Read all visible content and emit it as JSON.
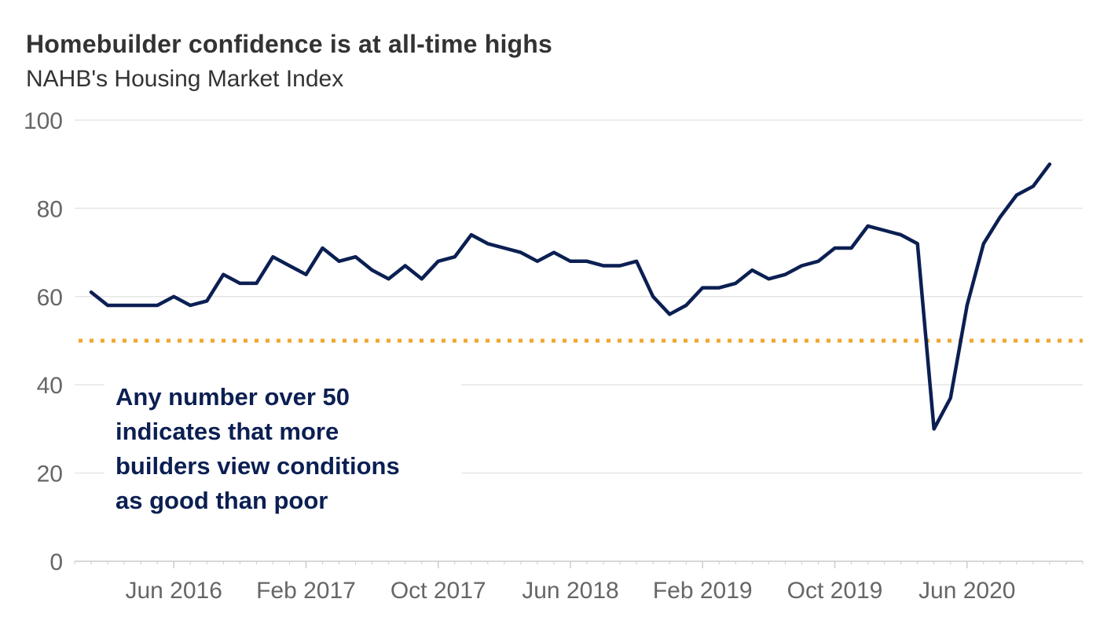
{
  "title": "Homebuilder confidence is at all-time highs",
  "subtitle": "NAHB's Housing Market Index",
  "annotation": {
    "lines": [
      "Any number over 50",
      "indicates that more",
      "builders view conditions",
      "as good than poor"
    ]
  },
  "colors": {
    "line": "#0b1f52",
    "reference_line": "#f0a830",
    "grid": "#e6e6e6",
    "axis": "#cccccc",
    "text": "#333333",
    "tick_text": "#666666"
  },
  "chart_data": {
    "type": "line",
    "x_axis": {
      "start": "2015-12",
      "end": "2021-01",
      "tick_labels": [
        "Jun 2016",
        "Feb 2017",
        "Oct 2017",
        "Jun 2018",
        "Feb 2019",
        "Oct 2019",
        "Jun 2020"
      ],
      "tick_dates": [
        "2016-06",
        "2017-02",
        "2017-10",
        "2018-06",
        "2019-02",
        "2019-10",
        "2020-06"
      ]
    },
    "y_axis": {
      "range": [
        0,
        100
      ],
      "tick_labels": [
        "0",
        "20",
        "40",
        "60",
        "80",
        "100"
      ],
      "tick_values": [
        0,
        20,
        40,
        60,
        80,
        100
      ]
    },
    "grid": true,
    "reference_line": {
      "y": 50,
      "style": "dotted"
    },
    "series": [
      {
        "dates": [
          "2016-01",
          "2016-02",
          "2016-03",
          "2016-04",
          "2016-05",
          "2016-06",
          "2016-07",
          "2016-08",
          "2016-09",
          "2016-10",
          "2016-11",
          "2016-12",
          "2017-01",
          "2017-02",
          "2017-03",
          "2017-04",
          "2017-05",
          "2017-06",
          "2017-07",
          "2017-08",
          "2017-09",
          "2017-10",
          "2017-11",
          "2017-12",
          "2018-01",
          "2018-02",
          "2018-03",
          "2018-04",
          "2018-05",
          "2018-06",
          "2018-07",
          "2018-08",
          "2018-09",
          "2018-10",
          "2018-11",
          "2018-12",
          "2019-01",
          "2019-02",
          "2019-03",
          "2019-04",
          "2019-05",
          "2019-06",
          "2019-07",
          "2019-08",
          "2019-09",
          "2019-10",
          "2019-11",
          "2019-12",
          "2020-01",
          "2020-02",
          "2020-03",
          "2020-04",
          "2020-05",
          "2020-06",
          "2020-07",
          "2020-08",
          "2020-09",
          "2020-10",
          "2020-11"
        ],
        "values": [
          61,
          58,
          58,
          58,
          58,
          60,
          58,
          59,
          65,
          63,
          63,
          69,
          67,
          65,
          71,
          68,
          69,
          66,
          64,
          67,
          64,
          68,
          69,
          74,
          72,
          71,
          70,
          68,
          70,
          68,
          68,
          67,
          67,
          68,
          60,
          56,
          58,
          62,
          62,
          63,
          66,
          64,
          65,
          67,
          68,
          71,
          71,
          76,
          75,
          74,
          72,
          30,
          37,
          58,
          72,
          78,
          83,
          85,
          90
        ]
      }
    ]
  }
}
